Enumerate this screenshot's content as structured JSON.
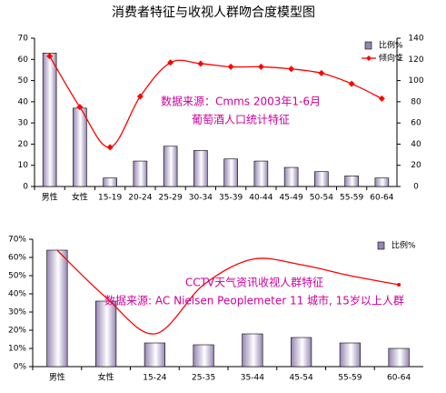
{
  "chart_data": [
    {
      "type": "bar",
      "title": "消费者特征与收视人群吻合度模型图",
      "annotations": [
        "数据来源：Cmms 2003年1-6月",
        "葡萄酒人口统计特征"
      ],
      "categories": [
        "男性",
        "女性",
        "15-19",
        "20-24",
        "25-29",
        "30-34",
        "35-39",
        "40-44",
        "45-49",
        "50-54",
        "55-59",
        "60-64"
      ],
      "series": [
        {
          "name": "比例%",
          "color": "#9585b3",
          "values": [
            63,
            37,
            4,
            12,
            19,
            17,
            13,
            12,
            9,
            7,
            5,
            4
          ]
        },
        {
          "name": "倾向性",
          "color": "#ff0000",
          "axis": "y2",
          "marker": "diamond",
          "values": [
            123,
            75,
            37,
            85,
            117,
            116,
            113,
            113,
            111,
            107,
            97,
            83
          ]
        }
      ],
      "ylim": [
        0,
        70
      ],
      "yticks": [
        0,
        10,
        20,
        30,
        40,
        50,
        60,
        70
      ],
      "y2lim": [
        0,
        140
      ],
      "y2ticks": [
        0,
        20,
        40,
        60,
        80,
        100,
        120,
        140
      ],
      "legend": "upper-right"
    },
    {
      "type": "bar",
      "annotations": [
        "CCTV天气资讯收视人群特征",
        "数据来源: AC Nielsen Peoplemeter 11 城市, 15岁以上人群"
      ],
      "categories": [
        "男性",
        "女性",
        "15-24",
        "25-35",
        "35-44",
        "45-54",
        "55-59",
        "60-64"
      ],
      "series": [
        {
          "name": "比例%",
          "color": "#9585b3",
          "values": [
            64,
            36,
            13,
            12,
            18,
            16,
            13,
            10
          ]
        },
        {
          "color": "#ff0000",
          "values": [
            64,
            38,
            18,
            45,
            59,
            56,
            50,
            45
          ]
        }
      ],
      "ylim": [
        0,
        70
      ],
      "yticks": [
        {
          "value": 0,
          "label": "0%"
        },
        {
          "value": 10,
          "label": "10%"
        },
        {
          "value": 20,
          "label": "20%"
        },
        {
          "value": 30,
          "label": "30%"
        },
        {
          "value": 40,
          "label": "40%"
        },
        {
          "value": 50,
          "label": "50%"
        },
        {
          "value": 60,
          "label": "60%"
        },
        {
          "value": 70,
          "label": "70%"
        }
      ],
      "legend": "upper-right"
    }
  ]
}
